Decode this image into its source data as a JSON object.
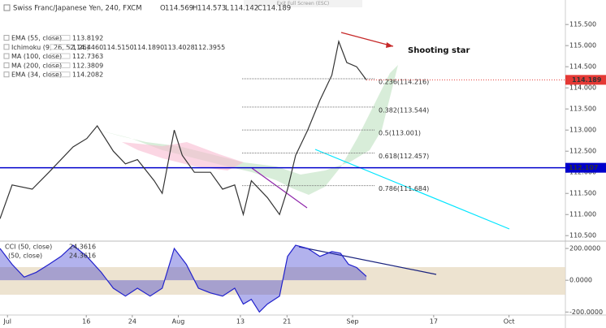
{
  "toolbar": {
    "exit": "Exit Full Screen (ESC)"
  },
  "chart_data": [
    {
      "type": "line",
      "title": "Swiss Franc/Japanese Yen, 240, FXCM",
      "ohlc": [
        {
          "label": "O",
          "value": 114.569
        },
        {
          "label": "H",
          "value": 114.573
        },
        {
          "label": "L",
          "value": 114.142
        },
        {
          "label": "C",
          "value": 114.189
        }
      ],
      "indicators": [
        {
          "name": "EMA (55, close)",
          "values": [
            113.8192
          ],
          "colors": [
            "#2962ff"
          ]
        },
        {
          "name": "Ichimoku (9, 26, 52, 26)",
          "values": [
            114.446,
            114.515,
            114.189,
            113.4028,
            112.3955
          ],
          "value_labels": [
            "114.4460",
            "114.5150",
            "114.1890",
            "113.4028",
            "112.3955"
          ],
          "colors": [
            "#1e88e5",
            "#b71c1c",
            "#2e7d32",
            "#43a047",
            "#c62828"
          ]
        },
        {
          "name": "MA (100, close)",
          "values": [
            112.7363
          ],
          "colors": [
            "#3949ab"
          ]
        },
        {
          "name": "MA (200, close)",
          "values": [
            112.3809
          ],
          "colors": [
            "#3949ab"
          ]
        },
        {
          "name": "EMA (34, close)",
          "values": [
            114.2082
          ],
          "colors": [
            "#1565c0"
          ]
        }
      ],
      "x": [
        0,
        2.1,
        5.6,
        8.5,
        12.7,
        15.1,
        16.9,
        19.7,
        21.8,
        23.9,
        26.8,
        28.2,
        30.3,
        31.7,
        33.8,
        36.6,
        38.7,
        40.8,
        42.3,
        43.7,
        46.5,
        48.6,
        50,
        51.4,
        53.5,
        55.6,
        57.7,
        58.9,
        60.3,
        62,
        63.7
      ],
      "values": [
        110.9,
        111.7,
        111.6,
        112.0,
        112.6,
        112.8,
        113.1,
        112.5,
        112.2,
        112.3,
        111.8,
        111.5,
        113.0,
        112.4,
        112.0,
        112.0,
        111.6,
        111.7,
        111.0,
        111.8,
        111.4,
        111.0,
        111.6,
        112.4,
        113.0,
        113.7,
        114.3,
        115.1,
        114.6,
        114.5,
        114.189
      ],
      "color": "#333333",
      "xlim": [
        0,
        98.3
      ],
      "ylim": [
        110.37,
        116.08
      ],
      "yticks": [
        {
          "value": 110.5,
          "label": "110.500"
        },
        {
          "value": 111,
          "label": "111.000"
        },
        {
          "value": 111.5,
          "label": "111.500"
        },
        {
          "value": 112,
          "label": "112.000"
        },
        {
          "value": 112.5,
          "label": "112.500"
        },
        {
          "value": 113,
          "label": "113.000"
        },
        {
          "value": 113.5,
          "label": "113.500"
        },
        {
          "value": 114,
          "label": "114.000"
        },
        {
          "value": 114.5,
          "label": "114.500"
        },
        {
          "value": 115,
          "label": "115.000"
        },
        {
          "value": 115.5,
          "label": "115.500"
        }
      ],
      "fib_levels": [
        {
          "value": 114.216,
          "label": "0.236(114.216)",
          "color": "#333333"
        },
        {
          "value": 113.544,
          "label": "0.382(113.544)",
          "color": "#333333"
        },
        {
          "value": 113.001,
          "label": "0.5(113.001)",
          "color": "#43a047"
        },
        {
          "value": 112.457,
          "label": "0.618(112.457)",
          "color": "#333333"
        },
        {
          "value": 111.684,
          "label": "0.786(111.684)",
          "color": "#333333"
        }
      ],
      "hline": {
        "value": 112.107,
        "color": "#0000cc"
      },
      "last_price": {
        "value": 114.189,
        "color": "#e53935"
      },
      "annotation": "Shooting star"
    },
    {
      "type": "area",
      "legend": [
        {
          "name": "CCI (50, close)",
          "value": 24.3616
        },
        {
          "name": "(50, close)",
          "value": 24.3616
        }
      ],
      "x": [
        0,
        2.1,
        4.2,
        6.3,
        8.5,
        10.6,
        12.7,
        15.1,
        17.6,
        19.7,
        21.8,
        23.9,
        26.1,
        28.2,
        30.3,
        32.4,
        34.5,
        36.6,
        38.7,
        40.8,
        42.3,
        43.7,
        45.1,
        46.5,
        48.6,
        50,
        51.4,
        53.5,
        55.6,
        57.7,
        59.2,
        60.6,
        62,
        63.7
      ],
      "values": [
        200,
        100,
        20,
        50,
        100,
        150,
        220,
        150,
        50,
        -50,
        -100,
        -50,
        -100,
        -50,
        200,
        100,
        -50,
        -80,
        -100,
        -50,
        -150,
        -120,
        -200,
        -150,
        -100,
        150,
        220,
        200,
        150,
        180,
        170,
        100,
        80,
        24.3616
      ],
      "color": "#2222cc",
      "xlim": [
        0,
        98.3
      ],
      "ylim": [
        -229,
        241
      ],
      "yticks": [
        {
          "value": -200,
          "label": "-200.0000"
        },
        {
          "value": 0,
          "label": "0.0000"
        },
        {
          "value": 200,
          "label": "200.0000"
        }
      ],
      "xticks": [
        {
          "value": 1.3,
          "label": "Jul"
        },
        {
          "value": 15,
          "label": "16"
        },
        {
          "value": 23,
          "label": "24"
        },
        {
          "value": 31,
          "label": "Aug"
        },
        {
          "value": 41.8,
          "label": "13"
        },
        {
          "value": 49.9,
          "label": "21"
        },
        {
          "value": 61.3,
          "label": "Sep"
        },
        {
          "value": 75.4,
          "label": "17"
        },
        {
          "value": 88.5,
          "label": "Oct"
        }
      ]
    }
  ]
}
